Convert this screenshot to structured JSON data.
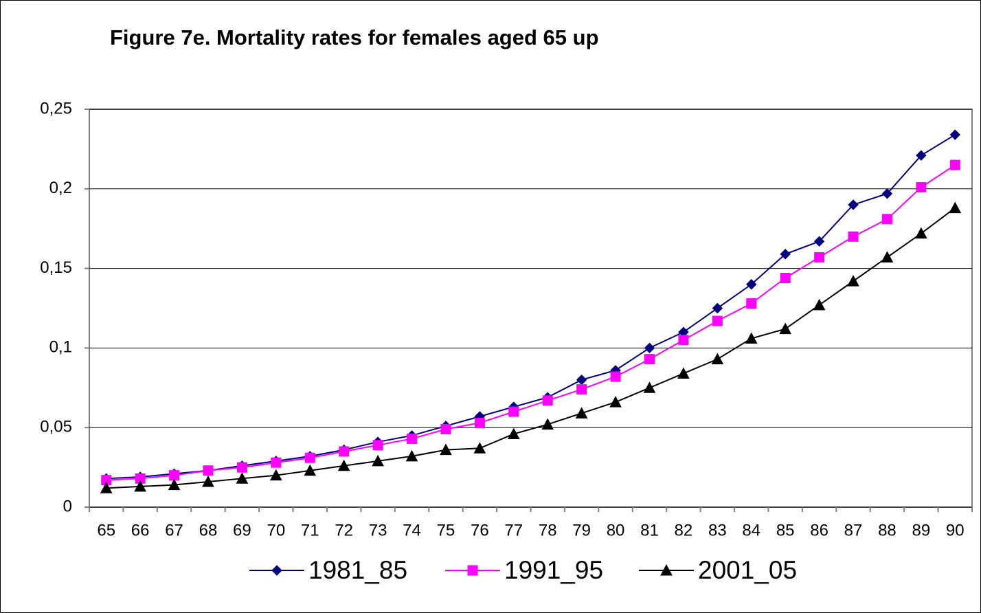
{
  "chart_data": {
    "type": "line",
    "title": "Figure 7e. Mortality rates for females aged 65 up",
    "categories": [
      "65",
      "66",
      "67",
      "68",
      "69",
      "70",
      "71",
      "72",
      "73",
      "74",
      "75",
      "76",
      "77",
      "78",
      "79",
      "80",
      "81",
      "82",
      "83",
      "84",
      "85",
      "86",
      "87",
      "88",
      "89",
      "90"
    ],
    "series": [
      {
        "name": "1981_85",
        "color": "#000080",
        "marker": "diamond",
        "values": [
          0.018,
          0.019,
          0.021,
          0.023,
          0.026,
          0.029,
          0.032,
          0.036,
          0.041,
          0.045,
          0.051,
          0.057,
          0.063,
          0.069,
          0.08,
          0.086,
          0.1,
          0.11,
          0.125,
          0.14,
          0.159,
          0.167,
          0.19,
          0.197,
          0.221,
          0.234
        ]
      },
      {
        "name": "1991_95",
        "color": "#ff00ff",
        "marker": "square",
        "values": [
          0.017,
          0.018,
          0.02,
          0.023,
          0.025,
          0.028,
          0.031,
          0.035,
          0.039,
          0.043,
          0.049,
          0.053,
          0.06,
          0.067,
          0.074,
          0.082,
          0.093,
          0.105,
          0.117,
          0.128,
          0.144,
          0.157,
          0.17,
          0.181,
          0.201,
          0.215
        ]
      },
      {
        "name": "2001_05",
        "color": "#000000",
        "marker": "triangle",
        "values": [
          0.012,
          0.013,
          0.014,
          0.016,
          0.018,
          0.02,
          0.023,
          0.026,
          0.029,
          0.032,
          0.036,
          0.037,
          0.046,
          0.052,
          0.059,
          0.066,
          0.075,
          0.084,
          0.093,
          0.106,
          0.112,
          0.127,
          0.142,
          0.157,
          0.172,
          0.188
        ]
      }
    ],
    "ylim": [
      0,
      0.25
    ],
    "yticks": [
      0,
      {
        "value": 0.05,
        "label": "0,05"
      },
      {
        "value": 0.1,
        "label": "0,1"
      },
      {
        "value": 0.15,
        "label": "0,15"
      },
      {
        "value": 0.2,
        "label": "0,2"
      },
      {
        "value": 0.25,
        "label": "0,25"
      }
    ],
    "grid": true,
    "legend": "bottom"
  }
}
